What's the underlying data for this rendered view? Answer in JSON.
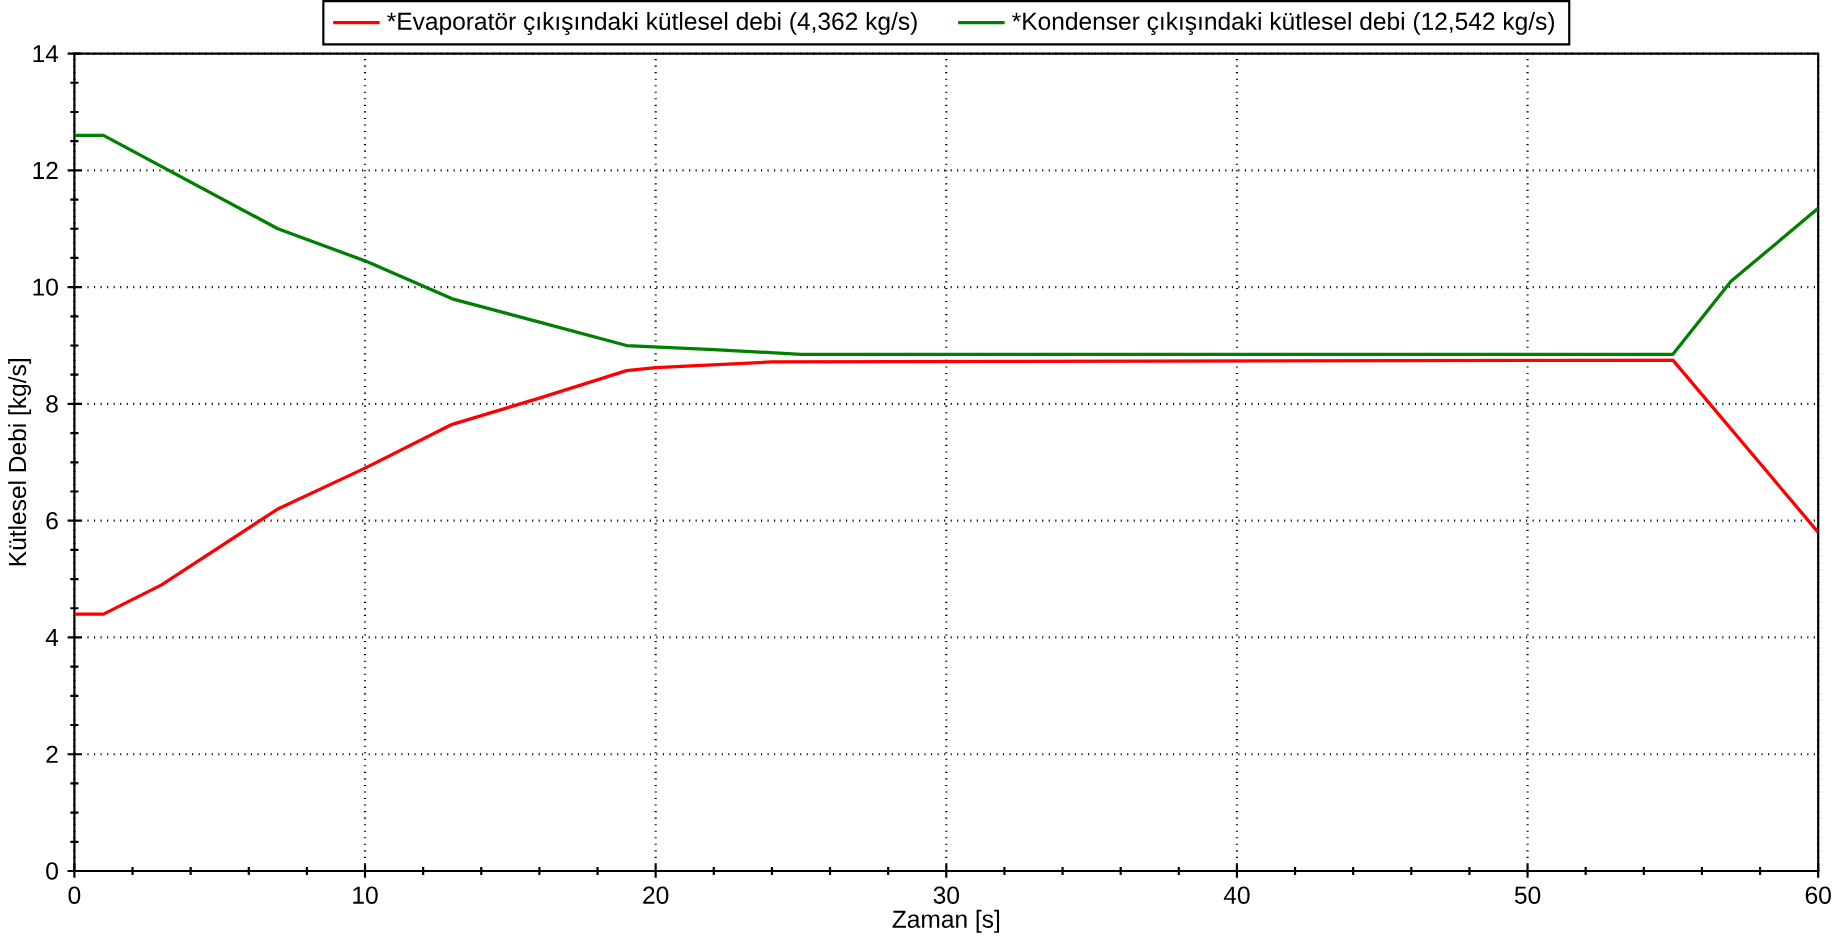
{
  "chart_data": {
    "type": "line",
    "xlabel": "Zaman [s]",
    "ylabel": "Kütlesel Debi [kg/s]",
    "xlim": [
      0,
      60
    ],
    "ylim": [
      0,
      14
    ],
    "xticks": [
      0,
      10,
      20,
      30,
      40,
      50,
      60
    ],
    "yticks": [
      0,
      2,
      4,
      6,
      8,
      10,
      12,
      14
    ],
    "grid": true,
    "legend": "top",
    "line_style": "solid",
    "marker": "none",
    "series": [
      {
        "name": "*Evaporatör çıkışındaki kütlesel debi (4,362 kg/s)",
        "color": "#ff0000",
        "x": [
          0,
          1,
          3,
          7,
          10,
          13,
          16,
          19,
          20,
          24,
          55,
          60
        ],
        "values": [
          4.4,
          4.4,
          4.9,
          6.2,
          6.9,
          7.65,
          8.1,
          8.57,
          8.62,
          8.72,
          8.75,
          5.8
        ]
      },
      {
        "name": "*Kondenser çıkışındaki kütlesel debi (12,542 kg/s)",
        "color": "#008000",
        "x": [
          0,
          1,
          7,
          10,
          13,
          16,
          19,
          22,
          25,
          55,
          57,
          60
        ],
        "values": [
          12.6,
          12.6,
          11.0,
          10.45,
          9.8,
          9.4,
          9.0,
          8.93,
          8.85,
          8.85,
          10.1,
          11.35
        ]
      }
    ]
  }
}
